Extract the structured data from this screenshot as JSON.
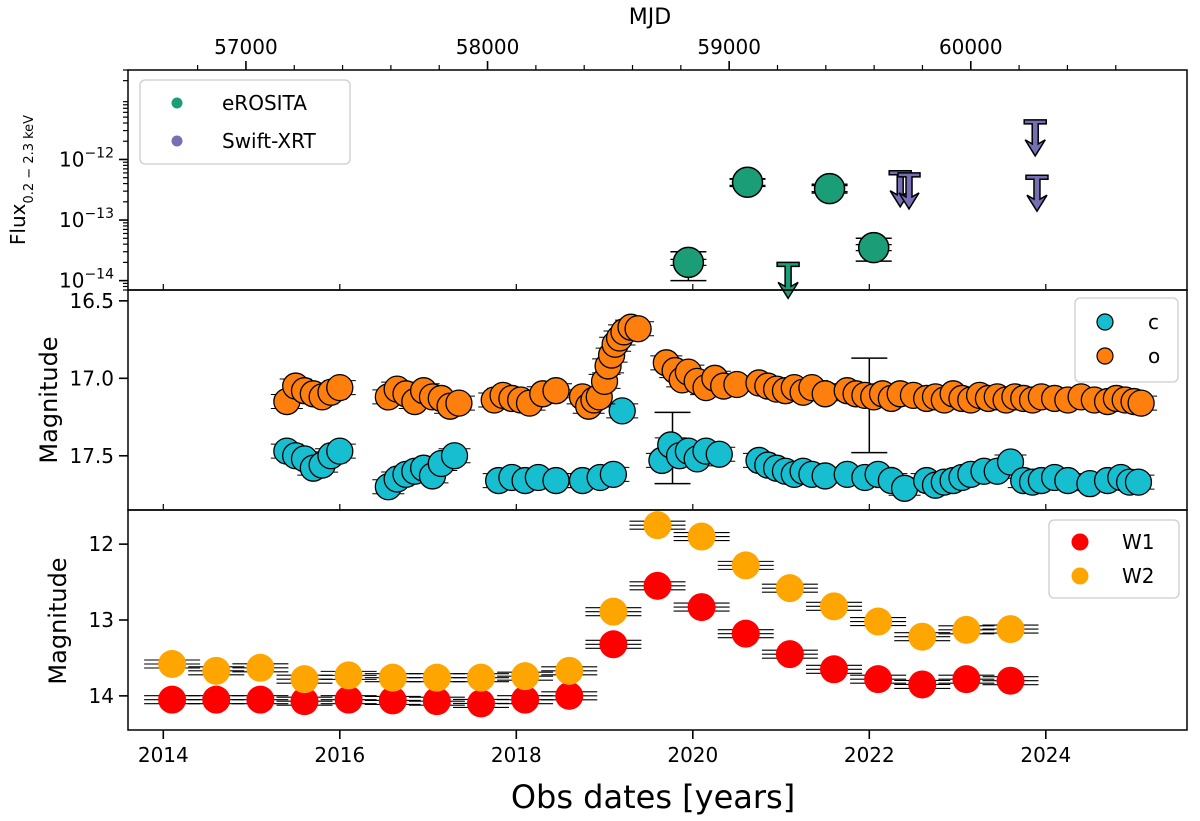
{
  "chart_data": [
    {
      "panel": "xray",
      "type": "scatter",
      "top_axis_label": "MJD",
      "top_ticks": [
        "57000",
        "58000",
        "59000",
        "60000"
      ],
      "top_tick_values": [
        57000,
        58000,
        59000,
        60000
      ],
      "ylabel": "Flux",
      "ylabel_subscript": "0.2 − 2.3 keV",
      "yscale": "log",
      "ylim": [
        7e-15,
        3e-11
      ],
      "yticks": [
        {
          "value": 1e-12,
          "base": "10",
          "exp": "−12"
        },
        {
          "value": 1e-13,
          "base": "10",
          "exp": "−13"
        },
        {
          "value": 1e-14,
          "base": "10",
          "exp": "−14"
        }
      ],
      "legend_position": "upper-left",
      "series": [
        {
          "name": "eROSITA",
          "color": "#1b9e77",
          "points": [
            {
              "x": 2019.95,
              "y": 2e-14,
              "ylo": 1e-14,
              "yhi": 3e-14
            },
            {
              "x": 2020.62,
              "y": 4.2e-13,
              "ylo": 3.6e-13,
              "yhi": 4.8e-13
            },
            {
              "x": 2021.55,
              "y": 3.3e-13,
              "ylo": 2.8e-13,
              "yhi": 3.9e-13
            },
            {
              "x": 2022.05,
              "y": 3.5e-14,
              "ylo": 2.1e-14,
              "yhi": 5e-14
            }
          ],
          "upper_limits": [
            {
              "x": 2021.08,
              "y": 2e-14
            }
          ]
        },
        {
          "name": "Swift-XRT",
          "color": "#7570b3",
          "points": [],
          "upper_limits": [
            {
              "x": 2022.35,
              "y": 6.5e-13
            },
            {
              "x": 2022.45,
              "y": 6e-13
            },
            {
              "x": 2023.88,
              "y": 4.5e-12
            },
            {
              "x": 2023.9,
              "y": 5.5e-13
            }
          ]
        }
      ]
    },
    {
      "panel": "optical",
      "type": "scatter",
      "ylabel": "Magnitude",
      "yinverted": true,
      "ylim": [
        17.85,
        16.43
      ],
      "yticks": [
        "16.5",
        "17.0",
        "17.5"
      ],
      "ytick_values": [
        16.5,
        17.0,
        17.5
      ],
      "legend_position": "upper-right",
      "series": [
        {
          "name": "c",
          "color": "#17becf",
          "points": [
            {
              "x": 2015.4,
              "y": 17.47
            },
            {
              "x": 2015.5,
              "y": 17.5
            },
            {
              "x": 2015.6,
              "y": 17.52
            },
            {
              "x": 2015.7,
              "y": 17.58
            },
            {
              "x": 2015.8,
              "y": 17.56
            },
            {
              "x": 2015.9,
              "y": 17.5
            },
            {
              "x": 2016.0,
              "y": 17.47
            },
            {
              "x": 2016.55,
              "y": 17.7
            },
            {
              "x": 2016.65,
              "y": 17.65
            },
            {
              "x": 2016.75,
              "y": 17.62
            },
            {
              "x": 2016.85,
              "y": 17.6
            },
            {
              "x": 2016.95,
              "y": 17.58
            },
            {
              "x": 2017.05,
              "y": 17.63
            },
            {
              "x": 2017.15,
              "y": 17.55
            },
            {
              "x": 2017.3,
              "y": 17.5
            },
            {
              "x": 2017.8,
              "y": 17.66
            },
            {
              "x": 2017.95,
              "y": 17.64
            },
            {
              "x": 2018.1,
              "y": 17.66
            },
            {
              "x": 2018.25,
              "y": 17.64
            },
            {
              "x": 2018.45,
              "y": 17.66
            },
            {
              "x": 2018.75,
              "y": 17.66
            },
            {
              "x": 2018.95,
              "y": 17.64
            },
            {
              "x": 2019.1,
              "y": 17.62
            },
            {
              "x": 2019.2,
              "y": 17.21
            },
            {
              "x": 2019.65,
              "y": 17.53
            },
            {
              "x": 2019.75,
              "y": 17.43
            },
            {
              "x": 2019.85,
              "y": 17.5
            },
            {
              "x": 2019.95,
              "y": 17.47
            },
            {
              "x": 2020.05,
              "y": 17.52
            },
            {
              "x": 2020.15,
              "y": 17.47
            },
            {
              "x": 2020.3,
              "y": 17.49
            },
            {
              "x": 2020.75,
              "y": 17.53
            },
            {
              "x": 2020.85,
              "y": 17.56
            },
            {
              "x": 2020.95,
              "y": 17.58
            },
            {
              "x": 2021.05,
              "y": 17.6
            },
            {
              "x": 2021.15,
              "y": 17.62
            },
            {
              "x": 2021.25,
              "y": 17.6
            },
            {
              "x": 2021.35,
              "y": 17.62
            },
            {
              "x": 2021.5,
              "y": 17.63
            },
            {
              "x": 2021.75,
              "y": 17.62
            },
            {
              "x": 2021.95,
              "y": 17.64
            },
            {
              "x": 2022.1,
              "y": 17.62
            },
            {
              "x": 2022.25,
              "y": 17.66
            },
            {
              "x": 2022.4,
              "y": 17.71
            },
            {
              "x": 2022.65,
              "y": 17.66
            },
            {
              "x": 2022.75,
              "y": 17.69
            },
            {
              "x": 2022.85,
              "y": 17.67
            },
            {
              "x": 2022.95,
              "y": 17.66
            },
            {
              "x": 2023.05,
              "y": 17.64
            },
            {
              "x": 2023.15,
              "y": 17.62
            },
            {
              "x": 2023.3,
              "y": 17.6
            },
            {
              "x": 2023.45,
              "y": 17.6
            },
            {
              "x": 2023.6,
              "y": 17.54
            },
            {
              "x": 2023.75,
              "y": 17.66
            },
            {
              "x": 2023.85,
              "y": 17.67
            },
            {
              "x": 2023.95,
              "y": 17.66
            },
            {
              "x": 2024.1,
              "y": 17.64
            },
            {
              "x": 2024.25,
              "y": 17.66
            },
            {
              "x": 2024.5,
              "y": 17.68
            },
            {
              "x": 2024.7,
              "y": 17.66
            },
            {
              "x": 2024.85,
              "y": 17.64
            },
            {
              "x": 2024.95,
              "y": 17.67
            },
            {
              "x": 2025.05,
              "y": 17.67
            }
          ]
        },
        {
          "name": "o",
          "color": "#ff7f0e",
          "points": [
            {
              "x": 2015.4,
              "y": 17.15
            },
            {
              "x": 2015.5,
              "y": 17.05
            },
            {
              "x": 2015.6,
              "y": 17.08
            },
            {
              "x": 2015.7,
              "y": 17.1
            },
            {
              "x": 2015.8,
              "y": 17.12
            },
            {
              "x": 2015.9,
              "y": 17.09
            },
            {
              "x": 2016.0,
              "y": 17.06
            },
            {
              "x": 2016.55,
              "y": 17.12
            },
            {
              "x": 2016.65,
              "y": 17.07
            },
            {
              "x": 2016.75,
              "y": 17.1
            },
            {
              "x": 2016.85,
              "y": 17.15
            },
            {
              "x": 2016.95,
              "y": 17.08
            },
            {
              "x": 2017.05,
              "y": 17.12
            },
            {
              "x": 2017.15,
              "y": 17.13
            },
            {
              "x": 2017.25,
              "y": 17.18
            },
            {
              "x": 2017.35,
              "y": 17.16
            },
            {
              "x": 2017.75,
              "y": 17.14
            },
            {
              "x": 2017.85,
              "y": 17.11
            },
            {
              "x": 2017.95,
              "y": 17.13
            },
            {
              "x": 2018.05,
              "y": 17.14
            },
            {
              "x": 2018.15,
              "y": 17.16
            },
            {
              "x": 2018.3,
              "y": 17.1
            },
            {
              "x": 2018.45,
              "y": 17.08
            },
            {
              "x": 2018.75,
              "y": 17.12
            },
            {
              "x": 2018.82,
              "y": 17.18
            },
            {
              "x": 2018.88,
              "y": 17.14
            },
            {
              "x": 2018.94,
              "y": 17.12
            },
            {
              "x": 2019.0,
              "y": 17.02
            },
            {
              "x": 2019.04,
              "y": 16.92
            },
            {
              "x": 2019.08,
              "y": 16.85
            },
            {
              "x": 2019.12,
              "y": 16.78
            },
            {
              "x": 2019.17,
              "y": 16.74
            },
            {
              "x": 2019.22,
              "y": 16.7
            },
            {
              "x": 2019.3,
              "y": 16.67
            },
            {
              "x": 2019.38,
              "y": 16.68
            },
            {
              "x": 2019.7,
              "y": 16.9
            },
            {
              "x": 2019.8,
              "y": 16.95
            },
            {
              "x": 2019.88,
              "y": 17.01
            },
            {
              "x": 2019.95,
              "y": 16.96
            },
            {
              "x": 2020.05,
              "y": 17.02
            },
            {
              "x": 2020.15,
              "y": 17.06
            },
            {
              "x": 2020.25,
              "y": 17.0
            },
            {
              "x": 2020.35,
              "y": 17.05
            },
            {
              "x": 2020.5,
              "y": 17.04
            },
            {
              "x": 2020.75,
              "y": 17.03
            },
            {
              "x": 2020.85,
              "y": 17.05
            },
            {
              "x": 2020.95,
              "y": 17.07
            },
            {
              "x": 2021.05,
              "y": 17.08
            },
            {
              "x": 2021.15,
              "y": 17.06
            },
            {
              "x": 2021.25,
              "y": 17.09
            },
            {
              "x": 2021.35,
              "y": 17.06
            },
            {
              "x": 2021.5,
              "y": 17.1
            },
            {
              "x": 2021.75,
              "y": 17.08
            },
            {
              "x": 2021.85,
              "y": 17.1
            },
            {
              "x": 2021.95,
              "y": 17.11
            },
            {
              "x": 2022.05,
              "y": 17.12
            },
            {
              "x": 2022.15,
              "y": 17.1
            },
            {
              "x": 2022.25,
              "y": 17.13
            },
            {
              "x": 2022.35,
              "y": 17.1
            },
            {
              "x": 2022.5,
              "y": 17.11
            },
            {
              "x": 2022.65,
              "y": 17.13
            },
            {
              "x": 2022.75,
              "y": 17.12
            },
            {
              "x": 2022.85,
              "y": 17.14
            },
            {
              "x": 2022.95,
              "y": 17.1
            },
            {
              "x": 2023.05,
              "y": 17.13
            },
            {
              "x": 2023.15,
              "y": 17.14
            },
            {
              "x": 2023.25,
              "y": 17.11
            },
            {
              "x": 2023.35,
              "y": 17.13
            },
            {
              "x": 2023.45,
              "y": 17.12
            },
            {
              "x": 2023.55,
              "y": 17.14
            },
            {
              "x": 2023.65,
              "y": 17.12
            },
            {
              "x": 2023.75,
              "y": 17.13
            },
            {
              "x": 2023.85,
              "y": 17.14
            },
            {
              "x": 2023.95,
              "y": 17.12
            },
            {
              "x": 2024.1,
              "y": 17.13
            },
            {
              "x": 2024.25,
              "y": 17.14
            },
            {
              "x": 2024.4,
              "y": 17.12
            },
            {
              "x": 2024.55,
              "y": 17.14
            },
            {
              "x": 2024.7,
              "y": 17.15
            },
            {
              "x": 2024.8,
              "y": 17.13
            },
            {
              "x": 2024.9,
              "y": 17.14
            },
            {
              "x": 2025.0,
              "y": 17.15
            },
            {
              "x": 2025.08,
              "y": 17.16
            }
          ]
        }
      ],
      "large_errorbars": [
        {
          "x": 2019.77,
          "y": 17.45,
          "ylo": 17.68,
          "yhi": 17.22
        },
        {
          "x": 2022.0,
          "y": 17.18,
          "ylo": 17.48,
          "yhi": 16.87
        }
      ]
    },
    {
      "panel": "mir",
      "type": "scatter",
      "xlabel": "Obs dates [years]",
      "ylabel": "Magnitude",
      "yinverted": true,
      "ylim": [
        14.45,
        11.55
      ],
      "yticks": [
        "12",
        "13",
        "14"
      ],
      "ytick_values": [
        12,
        13,
        14
      ],
      "xticks": [
        "2014",
        "2016",
        "2018",
        "2020",
        "2022",
        "2024"
      ],
      "xtick_values": [
        2014,
        2016,
        2018,
        2020,
        2022,
        2024
      ],
      "xlim": [
        2013.6,
        2025.6
      ],
      "legend_position": "upper-right",
      "series": [
        {
          "name": "W1",
          "color": "#ff0000",
          "points": [
            {
              "x": 2014.1,
              "y": 14.05
            },
            {
              "x": 2014.6,
              "y": 14.05
            },
            {
              "x": 2015.1,
              "y": 14.05
            },
            {
              "x": 2015.6,
              "y": 14.07
            },
            {
              "x": 2016.1,
              "y": 14.05
            },
            {
              "x": 2016.6,
              "y": 14.06
            },
            {
              "x": 2017.1,
              "y": 14.07
            },
            {
              "x": 2017.6,
              "y": 14.1
            },
            {
              "x": 2018.1,
              "y": 14.05
            },
            {
              "x": 2018.6,
              "y": 14.0
            },
            {
              "x": 2019.1,
              "y": 13.32
            },
            {
              "x": 2019.6,
              "y": 12.55
            },
            {
              "x": 2020.1,
              "y": 12.83
            },
            {
              "x": 2020.6,
              "y": 13.18
            },
            {
              "x": 2021.1,
              "y": 13.45
            },
            {
              "x": 2021.6,
              "y": 13.65
            },
            {
              "x": 2022.1,
              "y": 13.78
            },
            {
              "x": 2022.6,
              "y": 13.85
            },
            {
              "x": 2023.1,
              "y": 13.78
            },
            {
              "x": 2023.6,
              "y": 13.8
            }
          ]
        },
        {
          "name": "W2",
          "color": "#ffa500",
          "points": [
            {
              "x": 2014.1,
              "y": 13.58
            },
            {
              "x": 2014.6,
              "y": 13.67
            },
            {
              "x": 2015.1,
              "y": 13.63
            },
            {
              "x": 2015.6,
              "y": 13.78
            },
            {
              "x": 2016.1,
              "y": 13.73
            },
            {
              "x": 2016.6,
              "y": 13.76
            },
            {
              "x": 2017.1,
              "y": 13.76
            },
            {
              "x": 2017.6,
              "y": 13.76
            },
            {
              "x": 2018.1,
              "y": 13.74
            },
            {
              "x": 2018.6,
              "y": 13.67
            },
            {
              "x": 2019.1,
              "y": 12.89
            },
            {
              "x": 2019.6,
              "y": 11.75
            },
            {
              "x": 2020.1,
              "y": 11.9
            },
            {
              "x": 2020.6,
              "y": 12.28
            },
            {
              "x": 2021.1,
              "y": 12.58
            },
            {
              "x": 2021.6,
              "y": 12.82
            },
            {
              "x": 2022.1,
              "y": 13.02
            },
            {
              "x": 2022.6,
              "y": 13.22
            },
            {
              "x": 2023.1,
              "y": 13.13
            },
            {
              "x": 2023.6,
              "y": 13.12
            }
          ]
        }
      ]
    }
  ]
}
